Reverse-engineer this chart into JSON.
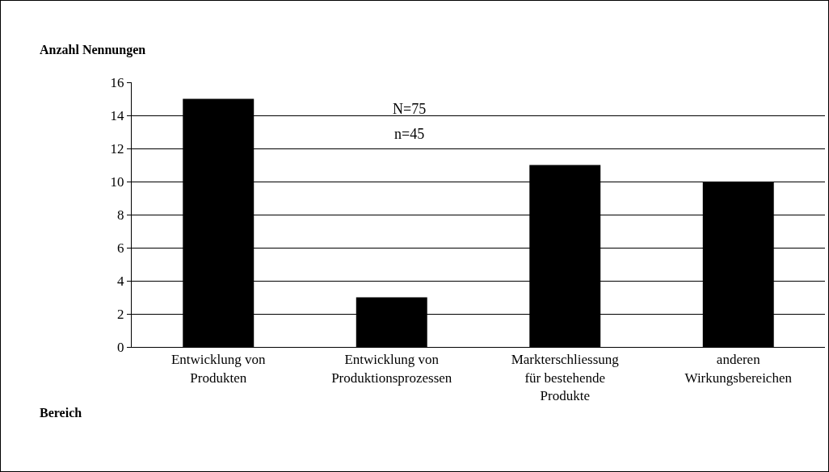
{
  "chart_data": {
    "type": "bar",
    "ylabel": "Anzahl Nennungen",
    "xlabel": "Bereich",
    "categories": [
      "Entwicklung von Produkten",
      "Entwicklung von Produktionsprozessen",
      "Markterschliessung für bestehende Produkte",
      "anderen Wirkungsbereichen"
    ],
    "values": [
      15,
      3,
      11,
      10
    ],
    "color": "#000000",
    "ylim": [
      0,
      16
    ],
    "yticks": [
      0,
      2,
      4,
      6,
      8,
      10,
      12,
      14,
      16
    ],
    "grid": "y",
    "annotations": [
      "N=75",
      "n=45"
    ]
  }
}
